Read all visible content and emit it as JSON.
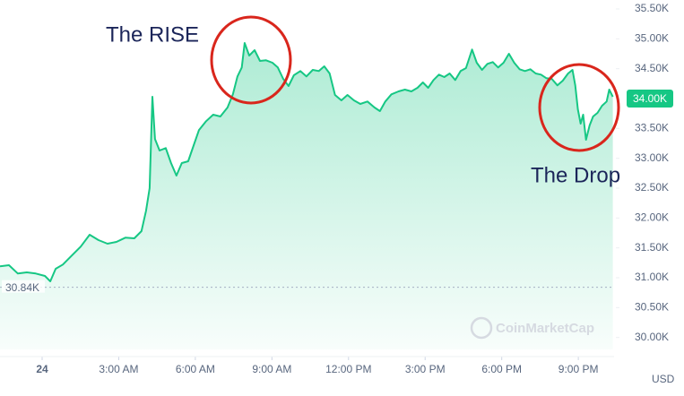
{
  "chart_data": {
    "type": "line",
    "color": "#16c784",
    "grid": false,
    "annotations": [
      {
        "text": "The RISE"
      },
      {
        "text": "The Drop"
      }
    ],
    "unit_label": "USD",
    "watermark": "CoinMarketCap",
    "reference_line": {
      "value": 30840,
      "label": "30.84K"
    },
    "current_price": {
      "value": 34000,
      "label": "34.00K"
    },
    "xlim": [
      -1.65,
      22.4
    ],
    "xticks": [
      {
        "value": 0,
        "label": "24"
      },
      {
        "value": 3,
        "label": "3:00 AM"
      },
      {
        "value": 6,
        "label": "6:00 AM"
      },
      {
        "value": 9,
        "label": "9:00 AM"
      },
      {
        "value": 12,
        "label": "12:00 PM"
      },
      {
        "value": 15,
        "label": "3:00 PM"
      },
      {
        "value": 18,
        "label": "6:00 PM"
      },
      {
        "value": 21,
        "label": "9:00 PM"
      }
    ],
    "ylim": [
      29800,
      35650
    ],
    "yticks": [
      {
        "value": 35500,
        "label": "35.50K"
      },
      {
        "value": 35000,
        "label": "35.00K"
      },
      {
        "value": 34500,
        "label": "34.50K"
      },
      {
        "value": 33500,
        "label": "33.50K"
      },
      {
        "value": 33000,
        "label": "33.00K"
      },
      {
        "value": 32500,
        "label": "32.50K"
      },
      {
        "value": 32000,
        "label": "32.00K"
      },
      {
        "value": 31500,
        "label": "31.50K"
      },
      {
        "value": 31000,
        "label": "31.00K"
      },
      {
        "value": 30500,
        "label": "30.50K"
      },
      {
        "value": 30000,
        "label": "30.00K"
      }
    ],
    "x": [
      -1.65,
      -1.3,
      -0.95,
      -0.6,
      -0.25,
      0.11,
      0.32,
      0.53,
      0.81,
      1.16,
      1.51,
      1.86,
      2.21,
      2.56,
      2.91,
      3.26,
      3.61,
      3.89,
      4.07,
      4.21,
      4.32,
      4.42,
      4.6,
      4.84,
      5.05,
      5.26,
      5.47,
      5.72,
      5.96,
      6.14,
      6.42,
      6.7,
      6.98,
      7.26,
      7.47,
      7.65,
      7.82,
      7.93,
      8.11,
      8.32,
      8.53,
      8.77,
      9.02,
      9.23,
      9.44,
      9.65,
      9.86,
      10.11,
      10.35,
      10.6,
      10.84,
      11.05,
      11.26,
      11.47,
      11.72,
      11.96,
      12.21,
      12.46,
      12.74,
      13.02,
      13.23,
      13.44,
      13.68,
      13.96,
      14.21,
      14.46,
      14.7,
      14.91,
      15.12,
      15.33,
      15.54,
      15.75,
      15.96,
      16.18,
      16.39,
      16.6,
      16.84,
      17.02,
      17.23,
      17.44,
      17.65,
      17.86,
      18.07,
      18.28,
      18.49,
      18.7,
      18.91,
      19.12,
      19.33,
      19.54,
      19.75,
      19.96,
      20.18,
      20.39,
      20.6,
      20.77,
      20.88,
      20.98,
      21.09,
      21.19,
      21.3,
      21.44,
      21.58,
      21.75,
      21.93,
      22.11,
      22.21,
      22.35
    ],
    "values": [
      31190,
      31210,
      31070,
      31090,
      31070,
      31030,
      30940,
      31150,
      31220,
      31370,
      31520,
      31720,
      31630,
      31570,
      31600,
      31670,
      31660,
      31780,
      32120,
      32500,
      34030,
      33320,
      33130,
      33170,
      32920,
      32710,
      32920,
      32950,
      33250,
      33470,
      33620,
      33730,
      33700,
      33850,
      34070,
      34370,
      34520,
      34930,
      34720,
      34810,
      34630,
      34640,
      34600,
      34520,
      34330,
      34210,
      34390,
      34460,
      34370,
      34480,
      34460,
      34540,
      34420,
      34060,
      33970,
      34060,
      33970,
      33910,
      33950,
      33850,
      33790,
      33950,
      34070,
      34120,
      34150,
      34120,
      34180,
      34270,
      34180,
      34310,
      34400,
      34360,
      34420,
      34310,
      34460,
      34510,
      34820,
      34600,
      34480,
      34580,
      34610,
      34520,
      34600,
      34750,
      34600,
      34490,
      34460,
      34490,
      34420,
      34400,
      34340,
      34330,
      34220,
      34300,
      34420,
      34480,
      34220,
      33820,
      33580,
      33730,
      33310,
      33550,
      33700,
      33760,
      33880,
      33950,
      34150,
      34030
    ]
  }
}
